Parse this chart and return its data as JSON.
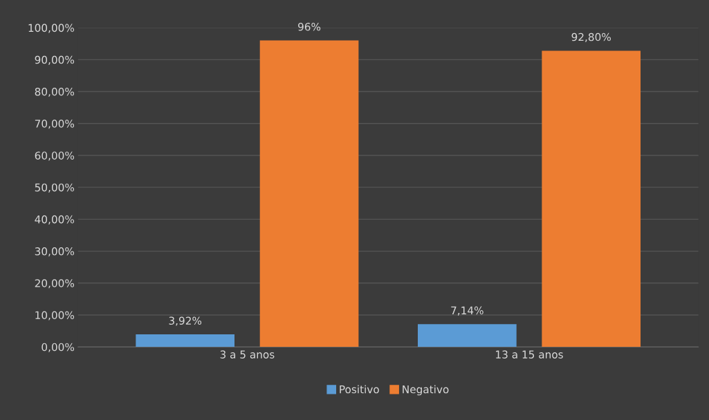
{
  "chart_data": {
    "type": "bar",
    "categories": [
      "3 a 5 anos",
      "13 a 15 anos"
    ],
    "series": [
      {
        "name": "Positivo",
        "color": "#5b9bd5",
        "values": [
          3.92,
          7.14
        ],
        "value_labels": [
          "3,92%",
          "7,14%"
        ]
      },
      {
        "name": "Negativo",
        "color": "#ed7d31",
        "values": [
          96,
          92.8
        ],
        "value_labels": [
          "96%",
          "92,80%"
        ]
      }
    ],
    "ylim": [
      0,
      100
    ],
    "yticks": [
      {
        "value": 0,
        "label": "0,00%"
      },
      {
        "value": 10,
        "label": "10,00%"
      },
      {
        "value": 20,
        "label": "20,00%"
      },
      {
        "value": 30,
        "label": "30,00%"
      },
      {
        "value": 40,
        "label": "40,00%"
      },
      {
        "value": 50,
        "label": "50,00%"
      },
      {
        "value": 60,
        "label": "60,00%"
      },
      {
        "value": 70,
        "label": "70,00%"
      },
      {
        "value": 80,
        "label": "80,00%"
      },
      {
        "value": 90,
        "label": "90,00%"
      },
      {
        "value": 100,
        "label": "100,00%"
      }
    ],
    "grid": "y",
    "legend": "bottom"
  }
}
